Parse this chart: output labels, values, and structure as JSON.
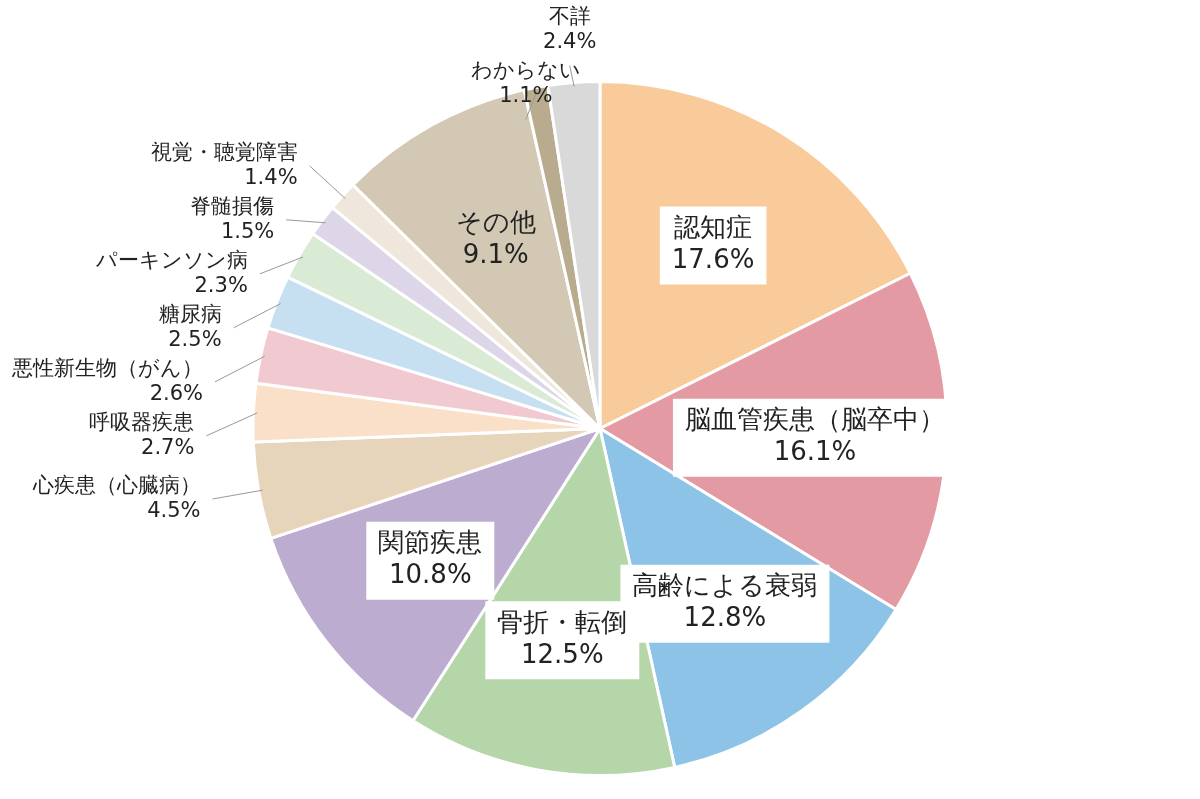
{
  "chart_data": {
    "type": "pie",
    "categories": [
      "認知症",
      "脳血管疾患（脳卒中）",
      "高齢による衰弱",
      "骨折・転倒",
      "関節疾患",
      "心疾患（心臓病）",
      "呼吸器疾患",
      "悪性新生物（がん）",
      "糖尿病",
      "パーキンソン病",
      "脊髄損傷",
      "視覚・聴覚障害",
      "その他",
      "わからない",
      "不詳"
    ],
    "values": [
      17.6,
      16.1,
      12.8,
      12.5,
      10.8,
      4.5,
      2.7,
      2.6,
      2.5,
      2.3,
      1.5,
      1.4,
      9.1,
      1.1,
      2.4
    ],
    "colors": [
      "#f9cb9a",
      "#e39aa2",
      "#8dc3e6",
      "#b4d6a9",
      "#bcadd0",
      "#e6d4bb",
      "#fbe0c9",
      "#f1c9d1",
      "#c6e0f1",
      "#d9ebd4",
      "#ddd5e8",
      "#efe7dc",
      "#d3c8b4",
      "#b8ab8e",
      "#d9d9d9"
    ],
    "value_labels": [
      "17.6%",
      "16.1%",
      "12.8%",
      "12.5%",
      "10.8%",
      "4.5%",
      "2.7%",
      "2.6%",
      "2.5%",
      "2.3%",
      "1.5%",
      "1.4%",
      "9.1%",
      "1.1%",
      "2.4%"
    ],
    "legend": false
  }
}
